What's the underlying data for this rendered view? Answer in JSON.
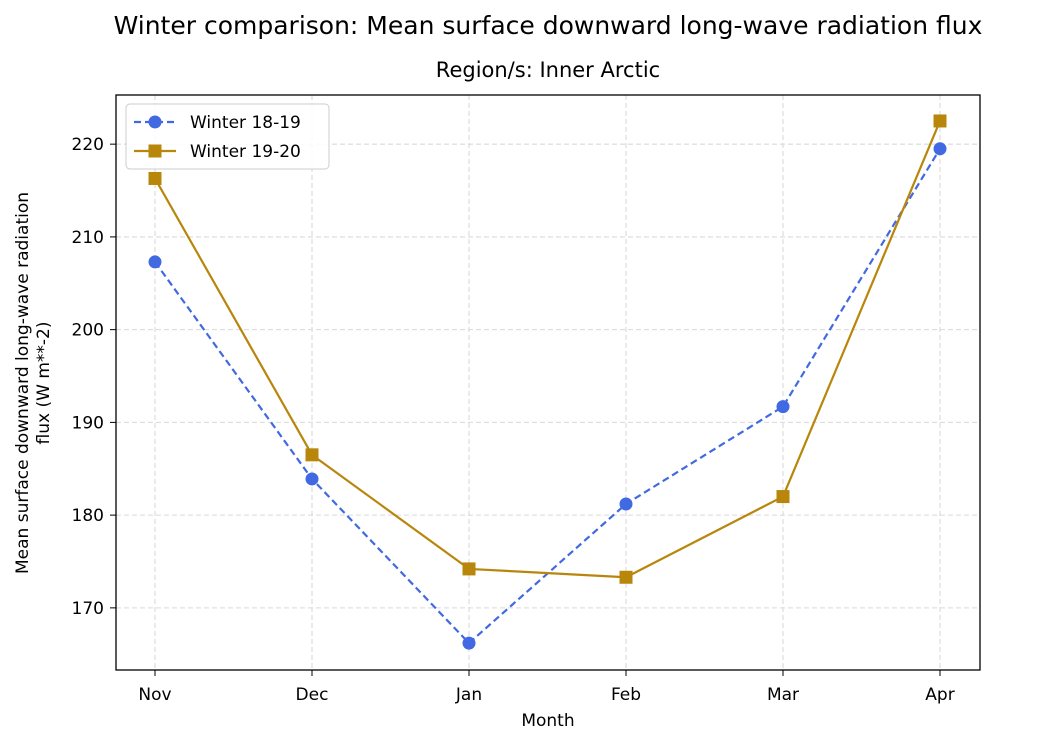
{
  "chart_data": {
    "type": "line",
    "title": "Winter comparison: Mean surface downward long-wave radiation flux",
    "subtitle": "Region/s: Inner Arctic",
    "xlabel": "Month",
    "ylabel_lines": [
      "Mean surface downward long-wave radiation",
      "flux (W m**-2)"
    ],
    "categories": [
      "Nov",
      "Dec",
      "Jan",
      "Feb",
      "Mar",
      "Apr"
    ],
    "y_ticks": [
      170,
      180,
      190,
      200,
      210,
      220
    ],
    "ylim": [
      163.3,
      225.3
    ],
    "grid": true,
    "legend_position": "top-left",
    "series": [
      {
        "name": "Winter 18-19",
        "values": [
          207.3,
          183.9,
          166.2,
          181.2,
          191.7,
          219.5
        ],
        "color": "#4169e1",
        "line_style": "dashed",
        "marker": "circle"
      },
      {
        "name": "Winter 19-20",
        "values": [
          216.3,
          186.5,
          174.2,
          173.3,
          182.0,
          222.5
        ],
        "color": "#b8860b",
        "line_style": "solid",
        "marker": "square"
      }
    ]
  }
}
